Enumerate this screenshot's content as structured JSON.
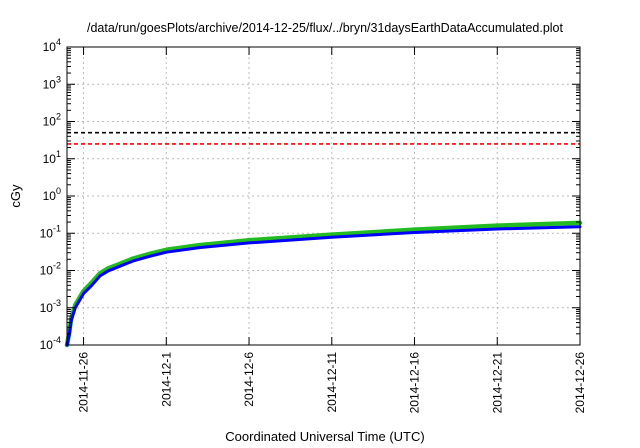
{
  "chart_data": {
    "type": "line",
    "title": "/data/run/goesPlots/archive/2014-12-25/flux/../bryn/31daysEarthDataAccumulated.plot",
    "xlabel": "Coordinated Universal Time (UTC)",
    "ylabel": "cGy",
    "x_scale": "time",
    "xlim": [
      "2014-11-25",
      "2014-12-26"
    ],
    "x_ticks": [
      "2014-11-26",
      "2014-12-1",
      "2014-12-6",
      "2014-12-11",
      "2014-12-16",
      "2014-12-21",
      "2014-12-26"
    ],
    "y_scale": "log",
    "ylim": [
      0.0001,
      10000
    ],
    "y_ticks": [
      {
        "value": 0.0001,
        "base": "10",
        "exp": "-4"
      },
      {
        "value": 0.001,
        "base": "10",
        "exp": "-3"
      },
      {
        "value": 0.01,
        "base": "10",
        "exp": "-2"
      },
      {
        "value": 0.1,
        "base": "10",
        "exp": "-1"
      },
      {
        "value": 1,
        "base": "10",
        "exp": "0"
      },
      {
        "value": 10,
        "base": "10",
        "exp": "1"
      },
      {
        "value": 100,
        "base": "10",
        "exp": "2"
      },
      {
        "value": 1000,
        "base": "10",
        "exp": "3"
      },
      {
        "value": 10000,
        "base": "10",
        "exp": "4"
      }
    ],
    "grid": true,
    "reference_lines": [
      {
        "y": 50,
        "color": "#000000",
        "style": "dashed"
      },
      {
        "y": 25,
        "color": "#ff0000",
        "style": "dashed"
      }
    ],
    "series": [
      {
        "color": "#22bb22",
        "x": [
          "2014-11-25T00:00",
          "2014-11-25T03:00",
          "2014-11-25T06:00",
          "2014-11-25T12:00",
          "2014-11-26T00:00",
          "2014-11-26T12:00",
          "2014-11-27T00:00",
          "2014-11-27T12:00",
          "2014-11-28T00:00",
          "2014-11-29T00:00",
          "2014-11-30T00:00",
          "2014-12-01T00:00",
          "2014-12-03T00:00",
          "2014-12-06T00:00",
          "2014-12-11T00:00",
          "2014-12-16T00:00",
          "2014-12-21T00:00",
          "2014-12-26T00:00"
        ],
        "y": [
          0.0001,
          0.0002,
          0.0005,
          0.0012,
          0.0028,
          0.0048,
          0.0085,
          0.0115,
          0.014,
          0.021,
          0.028,
          0.036,
          0.048,
          0.065,
          0.092,
          0.125,
          0.16,
          0.19
        ]
      },
      {
        "color": "#0000ff",
        "x": [
          "2014-11-25T00:00",
          "2014-11-25T03:00",
          "2014-11-25T06:00",
          "2014-11-25T12:00",
          "2014-11-26T00:00",
          "2014-11-26T12:00",
          "2014-11-27T00:00",
          "2014-11-27T12:00",
          "2014-11-28T00:00",
          "2014-11-29T00:00",
          "2014-11-30T00:00",
          "2014-12-01T00:00",
          "2014-12-03T00:00",
          "2014-12-06T00:00",
          "2014-12-11T00:00",
          "2014-12-16T00:00",
          "2014-12-21T00:00",
          "2014-12-26T00:00"
        ],
        "y": [
          0.0001,
          0.00018,
          0.00045,
          0.001,
          0.0024,
          0.004,
          0.0072,
          0.0098,
          0.012,
          0.018,
          0.024,
          0.031,
          0.041,
          0.055,
          0.078,
          0.105,
          0.13,
          0.15
        ]
      }
    ]
  }
}
